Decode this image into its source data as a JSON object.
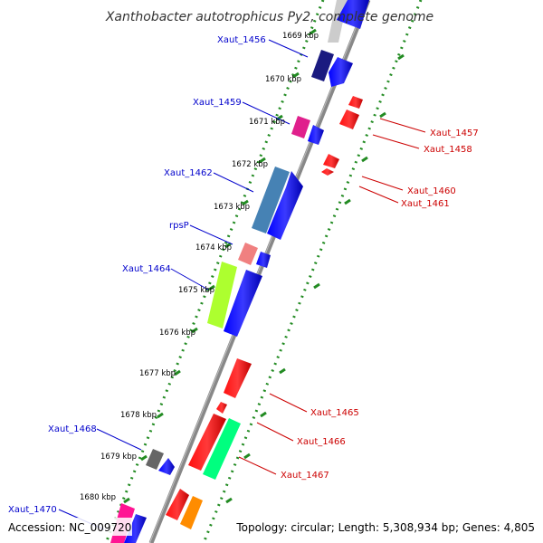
{
  "title": "Xanthobacter autotrophicus Py2, complete genome",
  "footer": {
    "accession": "Accession: NC_009720",
    "summary": "Topology: circular; Length: 5,308,934 bp; Genes: 4,805"
  },
  "ticks": [
    "1669 kbp",
    "1670 kbp",
    "1671 kbp",
    "1672 kbp",
    "1673 kbp",
    "1674 kbp",
    "1675 kbp",
    "1676 kbp",
    "1677 kbp",
    "1678 kbp",
    "1679 kbp",
    "1680 kbp"
  ],
  "labels_forward": [
    "Xaut_1456",
    "Xaut_1459",
    "Xaut_1462",
    "rpsP",
    "Xaut_1464",
    "Xaut_1468",
    "Xaut_1470"
  ],
  "labels_reverse": [
    "Xaut_1457",
    "Xaut_1458",
    "Xaut_1460",
    "Xaut_1461",
    "Xaut_1465",
    "Xaut_1466",
    "Xaut_1467"
  ],
  "colors": {
    "forward_label": "#0000cc",
    "reverse_label": "#cc0000",
    "backbone": "#888888",
    "gc_dots": "#228b22"
  }
}
